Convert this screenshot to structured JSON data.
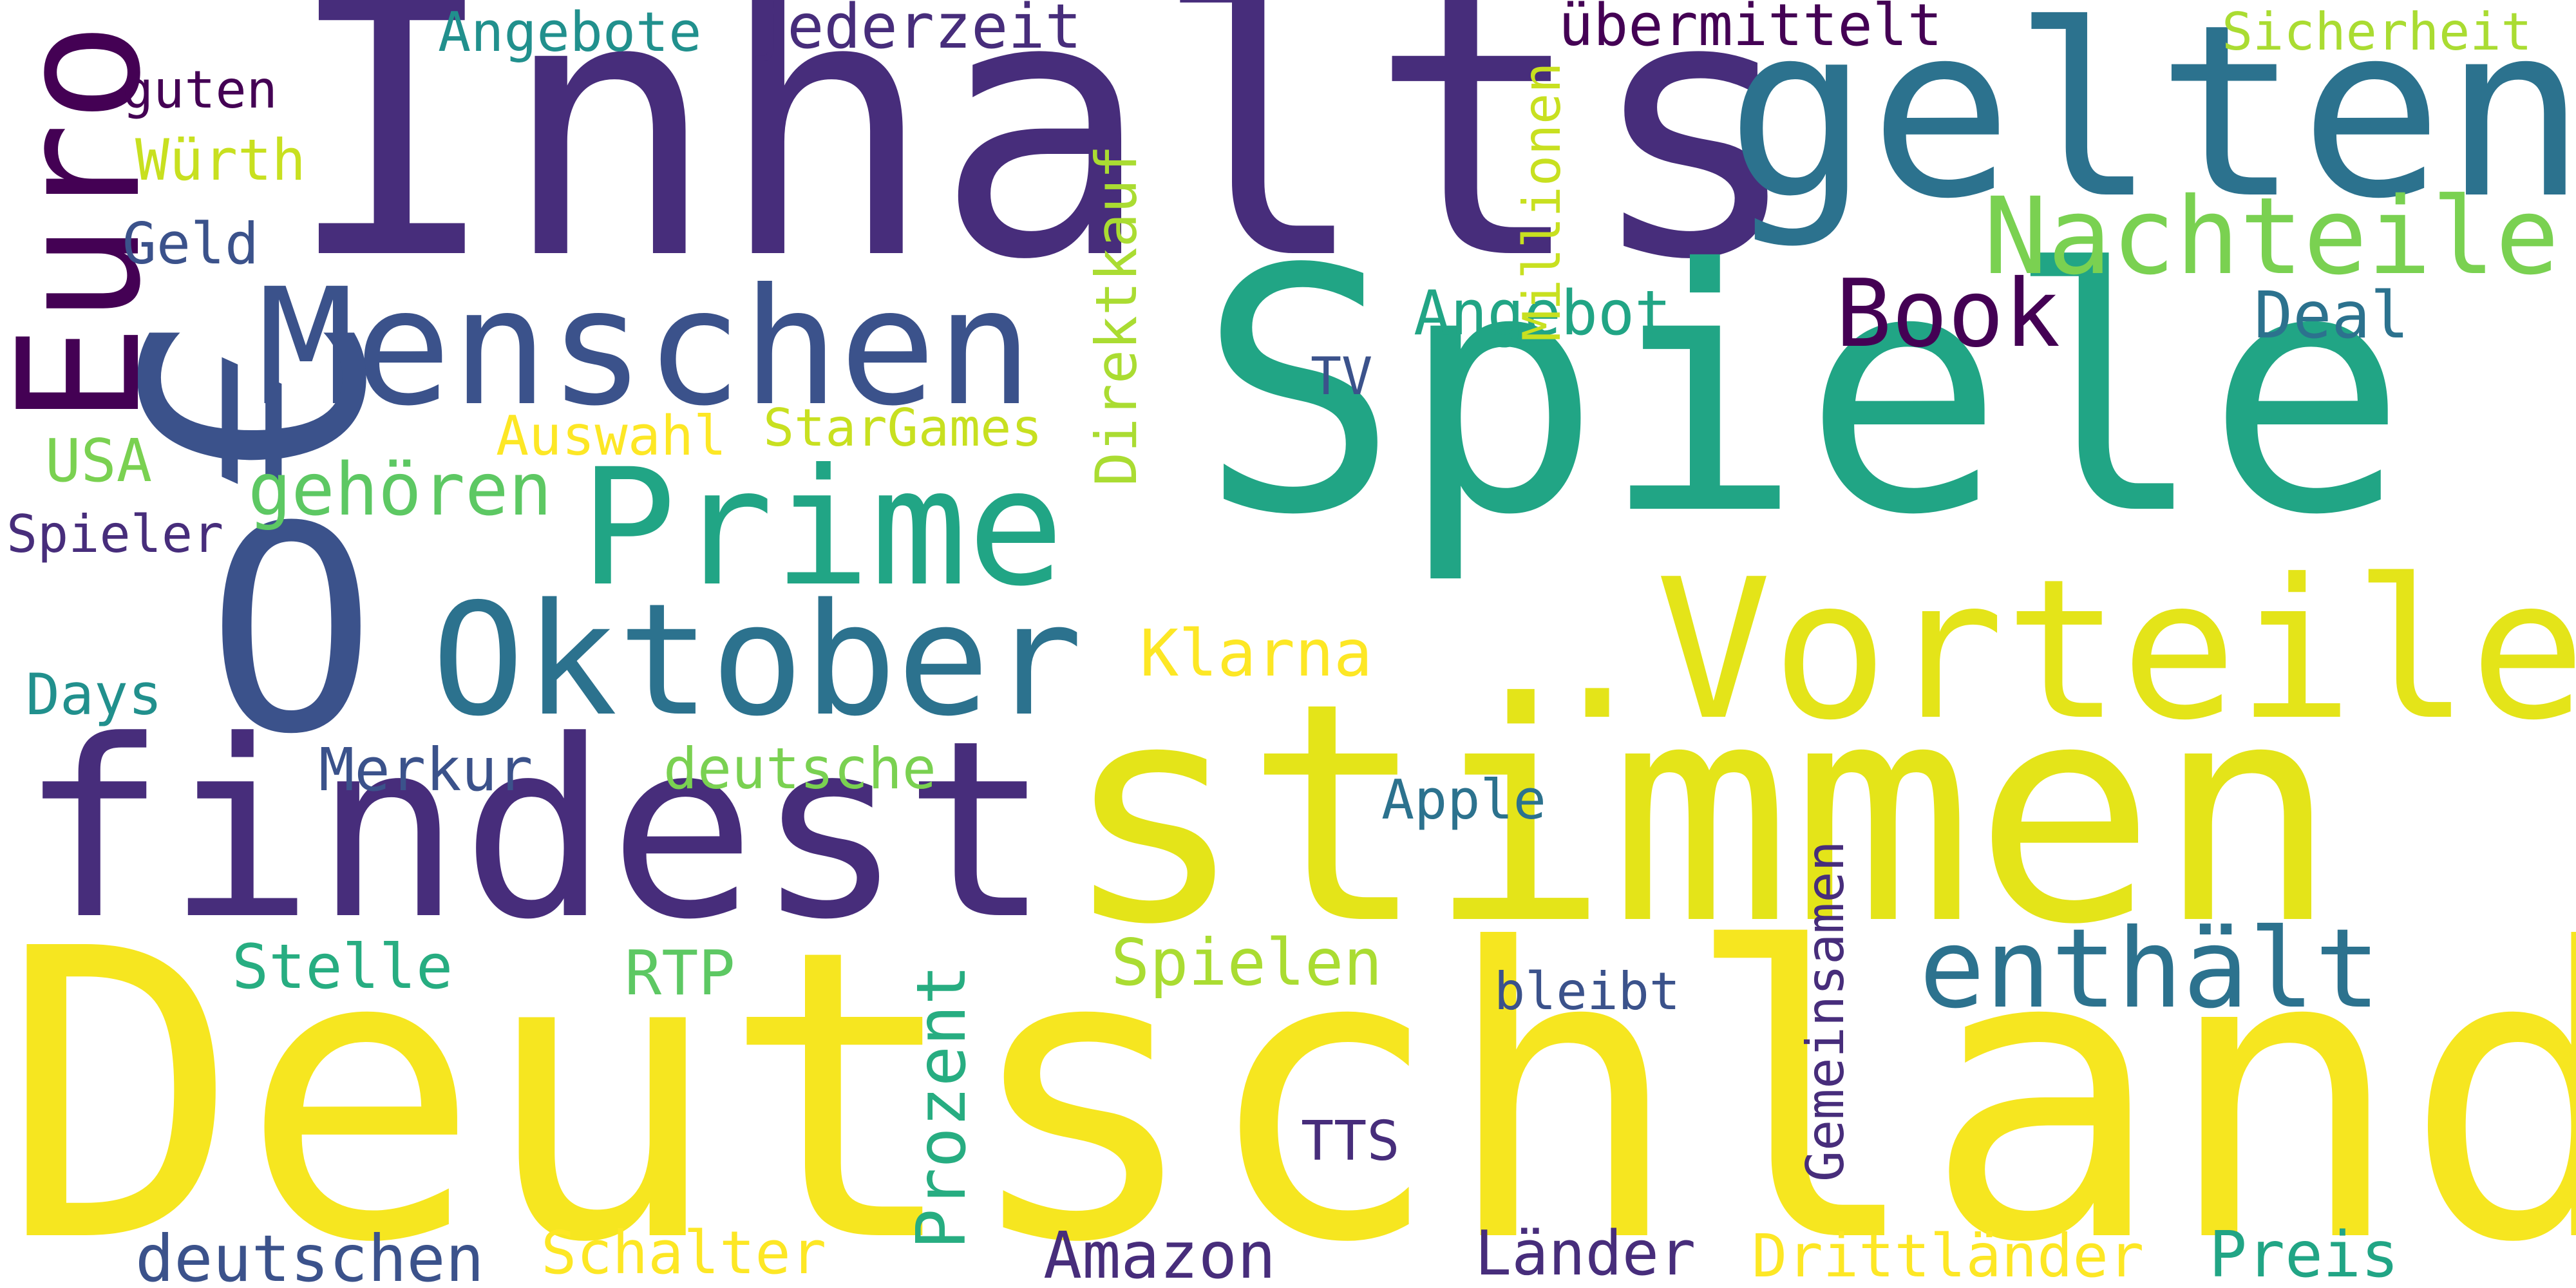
{
  "palette": {
    "purple_dark": "#440154",
    "indigo": "#472d7b",
    "slate_blue": "#3b528b",
    "steel_blue": "#2c728e",
    "teal": "#21908d",
    "teal_green": "#27ad81",
    "green": "#5dc863",
    "lime": "#aadc32",
    "yellow": "#fde725",
    "yellow_dark": "#e4e419"
  },
  "words": [
    {
      "text": "Inhalts",
      "color": "#472d7b"
    },
    {
      "text": "gelten",
      "color": "#2c728e"
    },
    {
      "text": "Spiele",
      "color": "#21a585"
    },
    {
      "text": "Deutschland",
      "color": "#f6e620"
    },
    {
      "text": "stimmen",
      "color": "#e4e419"
    },
    {
      "text": ".Vorteile",
      "color": "#e4e419"
    },
    {
      "text": "findest",
      "color": "#472d7b"
    },
    {
      "text": "Oktober",
      "color": "#2c728e"
    },
    {
      "text": "Prime",
      "color": "#21a585"
    },
    {
      "text": "Menschen",
      "color": "#3b528b"
    },
    {
      "text": "O",
      "color": "#3b528b"
    },
    {
      "text": "€",
      "color": "#3b528b"
    },
    {
      "text": "Euro",
      "color": "#440154"
    },
    {
      "text": "Nachteile",
      "color": "#7ad151"
    },
    {
      "text": "Book",
      "color": "#440154"
    },
    {
      "text": "enthält",
      "color": "#2c728e"
    },
    {
      "text": "gehören",
      "color": "#5dc863"
    },
    {
      "text": "Angebot",
      "color": "#21a585"
    },
    {
      "text": "Deal",
      "color": "#2c728e"
    },
    {
      "text": "Klarna",
      "color": "#fde725"
    },
    {
      "text": "Spielen",
      "color": "#aadc32"
    },
    {
      "text": "Angebote",
      "color": "#21908d"
    },
    {
      "text": "jederzeit",
      "color": "#472d7b"
    },
    {
      "text": "übermittelt",
      "color": "#440154"
    },
    {
      "text": "Sicherheit",
      "color": "#aadc32"
    },
    {
      "text": "guten",
      "color": "#440154"
    },
    {
      "text": "Würth",
      "color": "#c8e020"
    },
    {
      "text": "Geld",
      "color": "#3b528b"
    },
    {
      "text": "Millionen",
      "color": "#c8e020"
    },
    {
      "text": "Direktkauf",
      "color": "#aadc32"
    },
    {
      "text": "TV",
      "color": "#3b528b"
    },
    {
      "text": "Auswahl",
      "color": "#fde725"
    },
    {
      "text": "StarGames",
      "color": "#c8e020"
    },
    {
      "text": "USA",
      "color": "#7ad151"
    },
    {
      "text": "Spieler",
      "color": "#472d7b"
    },
    {
      "text": "Days",
      "color": "#21908d"
    },
    {
      "text": "Merkur",
      "color": "#3b528b"
    },
    {
      "text": "deutsche",
      "color": "#7ad151"
    },
    {
      "text": "Apple",
      "color": "#2c728e"
    },
    {
      "text": "Stelle",
      "color": "#27ad81"
    },
    {
      "text": "RTP",
      "color": "#5dc863"
    },
    {
      "text": "Prozent",
      "color": "#27ad81"
    },
    {
      "text": "bleibt",
      "color": "#3b528b"
    },
    {
      "text": "Gemeinsamen",
      "color": "#472d7b"
    },
    {
      "text": "TTS",
      "color": "#472d7b"
    },
    {
      "text": "deutschen",
      "color": "#3b528b"
    },
    {
      "text": "Schalter",
      "color": "#fde725"
    },
    {
      "text": "Amazon",
      "color": "#472d7b"
    },
    {
      "text": "Länder",
      "color": "#472d7b"
    },
    {
      "text": "Drittländer",
      "color": "#fde725"
    },
    {
      "text": "Preis",
      "color": "#21a585"
    }
  ]
}
